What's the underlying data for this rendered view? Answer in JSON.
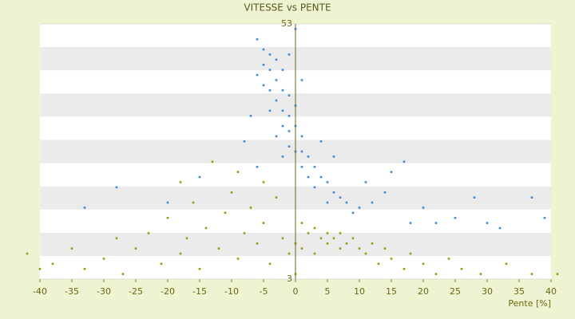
{
  "chart_data": {
    "type": "scatter",
    "title": "VITESSE vs PENTE",
    "x_label": "Pente [%]",
    "xlim": [
      -40,
      40
    ],
    "xticks": [
      -40,
      -35,
      -30,
      -25,
      -20,
      -15,
      -10,
      -5,
      0,
      5,
      10,
      15,
      20,
      25,
      30,
      35,
      40
    ],
    "ylim": [
      3,
      53
    ],
    "yticks": [
      3,
      53
    ],
    "grid": true,
    "series": [
      {
        "color": "#3a8ad8",
        "x": [
          -6,
          -5,
          -4,
          -5,
          -3,
          -4,
          -6,
          -2,
          -3,
          -5,
          -4,
          -2,
          -1,
          -3,
          -2,
          -4,
          -1,
          0,
          -2,
          -1,
          0,
          1,
          -3,
          -1,
          0,
          1,
          2,
          -2,
          3,
          1,
          2,
          4,
          5,
          3,
          6,
          7,
          8,
          5,
          10,
          12,
          9,
          14,
          15,
          17,
          20,
          22,
          25,
          28,
          30,
          37,
          39,
          -15,
          -20,
          -28,
          -33,
          -7,
          -8,
          0,
          -1,
          1,
          4,
          6,
          -6,
          11,
          18,
          32
        ],
        "values": [
          50,
          48,
          47,
          45,
          46,
          44,
          43,
          44,
          42,
          41,
          40,
          40,
          39,
          38,
          36,
          36,
          35,
          37,
          33,
          32,
          33,
          31,
          31,
          29,
          28,
          28,
          27,
          27,
          25,
          25,
          23,
          23,
          22,
          21,
          20,
          19,
          18,
          18,
          17,
          18,
          16,
          20,
          24,
          26,
          17,
          14,
          15,
          19,
          14,
          19,
          15,
          23,
          18,
          21,
          17,
          35,
          30,
          52,
          47,
          42,
          30,
          27,
          25,
          22,
          14,
          13
        ]
      },
      {
        "color": "#9a9a10",
        "x": [
          -40,
          -42,
          -38,
          -35,
          -33,
          -30,
          -28,
          -27,
          -25,
          -23,
          -21,
          -20,
          -18,
          -17,
          -16,
          -15,
          -14,
          -12,
          -11,
          -10,
          -9,
          -8,
          -7,
          -6,
          -5,
          -4,
          -3,
          -2,
          -1,
          0,
          0,
          1,
          1,
          2,
          3,
          3,
          4,
          5,
          5,
          6,
          7,
          7,
          8,
          9,
          10,
          11,
          12,
          13,
          14,
          15,
          17,
          18,
          20,
          22,
          24,
          26,
          29,
          33,
          37,
          41,
          -13,
          -9,
          -5,
          -18
        ],
        "values": [
          5,
          8,
          6,
          9,
          5,
          7,
          11,
          4,
          9,
          12,
          6,
          15,
          8,
          11,
          18,
          5,
          13,
          9,
          16,
          20,
          7,
          12,
          17,
          10,
          14,
          6,
          19,
          11,
          8,
          4,
          10,
          14,
          9,
          12,
          13,
          8,
          11,
          12,
          10,
          11,
          12,
          9,
          10,
          11,
          9,
          8,
          10,
          6,
          9,
          7,
          5,
          8,
          6,
          4,
          7,
          5,
          4,
          6,
          4,
          4,
          26,
          24,
          22,
          22
        ]
      }
    ]
  }
}
